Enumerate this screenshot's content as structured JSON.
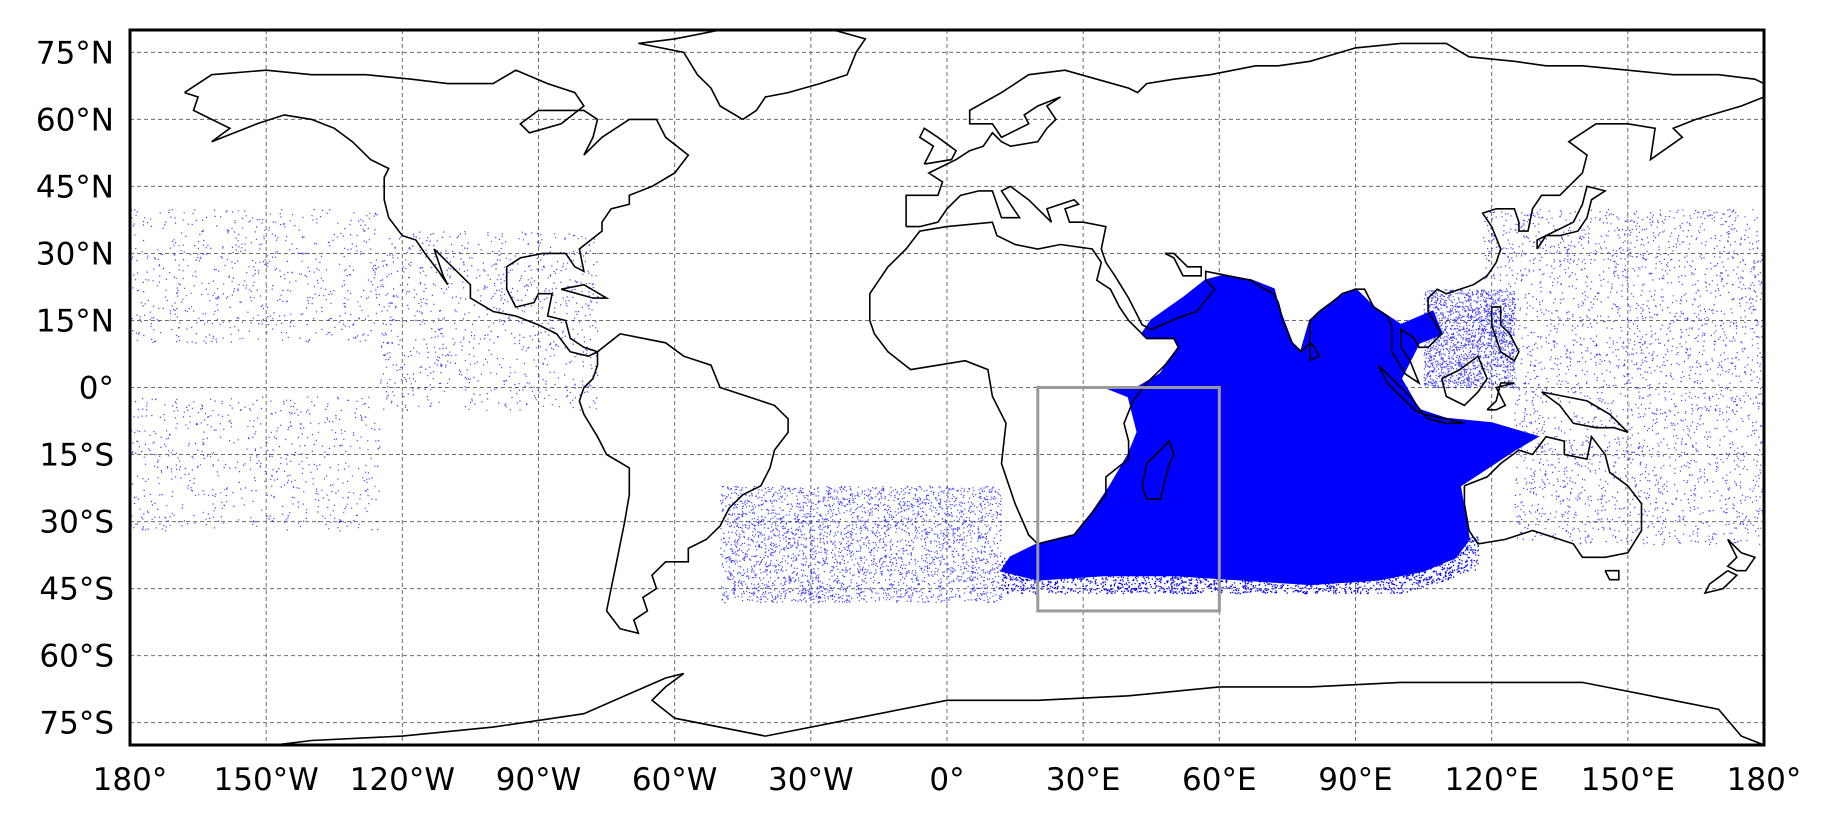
{
  "map": {
    "projection": "plate-carree",
    "extent": {
      "lon": [
        -180,
        180
      ],
      "lat": [
        -80,
        80
      ]
    },
    "grid": true,
    "lon_ticks": [
      {
        "value": -180,
        "label": "180°"
      },
      {
        "value": -150,
        "label": "150°W"
      },
      {
        "value": -120,
        "label": "120°W"
      },
      {
        "value": -90,
        "label": "90°W"
      },
      {
        "value": -60,
        "label": "60°W"
      },
      {
        "value": -30,
        "label": "30°W"
      },
      {
        "value": 0,
        "label": "0°"
      },
      {
        "value": 30,
        "label": "30°E"
      },
      {
        "value": 60,
        "label": "60°E"
      },
      {
        "value": 90,
        "label": "90°E"
      },
      {
        "value": 120,
        "label": "120°E"
      },
      {
        "value": 150,
        "label": "150°E"
      },
      {
        "value": 180,
        "label": "180°"
      }
    ],
    "lat_ticks": [
      {
        "value": 75,
        "label": "75°N"
      },
      {
        "value": 60,
        "label": "60°N"
      },
      {
        "value": 45,
        "label": "45°N"
      },
      {
        "value": 30,
        "label": "30°N"
      },
      {
        "value": 15,
        "label": "15°N"
      },
      {
        "value": 0,
        "label": "0°"
      },
      {
        "value": -15,
        "label": "15°S"
      },
      {
        "value": -30,
        "label": "30°S"
      },
      {
        "value": -45,
        "label": "45°S"
      },
      {
        "value": -60,
        "label": "60°S"
      },
      {
        "value": -75,
        "label": "75°S"
      }
    ],
    "colors": {
      "points": "#0000ff",
      "coastline": "#000000",
      "grid": "#6e6e6e",
      "box": "#999999",
      "frame": "#000000"
    },
    "source_box": {
      "lon": [
        20,
        60
      ],
      "lat": [
        -50,
        0
      ]
    },
    "dense_region": {
      "lon_range": [
        20,
        117
      ],
      "lat_range": [
        -45,
        24
      ],
      "description_points_lonlat": [
        [
          35,
          0
        ],
        [
          40,
          -2
        ],
        [
          42,
          -10
        ],
        [
          40,
          -15
        ],
        [
          36,
          -22
        ],
        [
          32,
          -28
        ],
        [
          28,
          -33
        ],
        [
          20,
          -35
        ],
        [
          14,
          -38
        ],
        [
          12,
          -41
        ],
        [
          20,
          -43
        ],
        [
          35,
          -42
        ],
        [
          50,
          -42
        ],
        [
          65,
          -43
        ],
        [
          80,
          -44
        ],
        [
          95,
          -43
        ],
        [
          105,
          -41
        ],
        [
          112,
          -38
        ],
        [
          115,
          -34
        ],
        [
          114,
          -28
        ],
        [
          113,
          -22
        ],
        [
          116,
          -20
        ],
        [
          125,
          -14
        ],
        [
          130,
          -11
        ],
        [
          120,
          -8
        ],
        [
          110,
          -7
        ],
        [
          104,
          -5
        ],
        [
          100,
          2
        ],
        [
          104,
          10
        ],
        [
          109,
          12
        ],
        [
          107,
          17
        ],
        [
          100,
          14
        ],
        [
          97,
          16
        ],
        [
          94,
          18
        ],
        [
          90,
          22
        ],
        [
          86,
          20
        ],
        [
          80,
          15
        ],
        [
          78,
          8
        ],
        [
          76,
          10
        ],
        [
          73,
          18
        ],
        [
          72,
          22
        ],
        [
          67,
          24
        ],
        [
          61,
          25
        ],
        [
          57,
          24
        ],
        [
          52,
          20
        ],
        [
          45,
          15
        ],
        [
          43,
          12
        ],
        [
          44,
          11
        ],
        [
          50,
          11
        ],
        [
          51,
          9
        ],
        [
          47,
          3
        ],
        [
          42,
          0
        ]
      ]
    },
    "sparse_regions": [
      {
        "name": "north-pacific",
        "lon_range": [
          -180,
          -125
        ],
        "lat_range": [
          10,
          40
        ],
        "count": 650
      },
      {
        "name": "south-pacific",
        "lon_range": [
          -180,
          -125
        ],
        "lat_range": [
          -32,
          -2
        ],
        "count": 650
      },
      {
        "name": "east-pacific-coast",
        "lon_range": [
          -125,
          -77
        ],
        "lat_range": [
          -5,
          35
        ],
        "count": 900
      },
      {
        "name": "south-atlantic",
        "lon_range": [
          -50,
          12
        ],
        "lat_range": [
          -48,
          -22
        ],
        "count": 3000
      },
      {
        "name": "west-pacific-north",
        "lon_range": [
          118,
          180
        ],
        "lat_range": [
          5,
          40
        ],
        "count": 1500
      },
      {
        "name": "west-pacific-south",
        "lon_range": [
          125,
          180
        ],
        "lat_range": [
          -35,
          5
        ],
        "count": 1400
      },
      {
        "name": "south-china-sea",
        "lon_range": [
          105,
          125
        ],
        "lat_range": [
          0,
          22
        ],
        "count": 1800
      }
    ]
  }
}
